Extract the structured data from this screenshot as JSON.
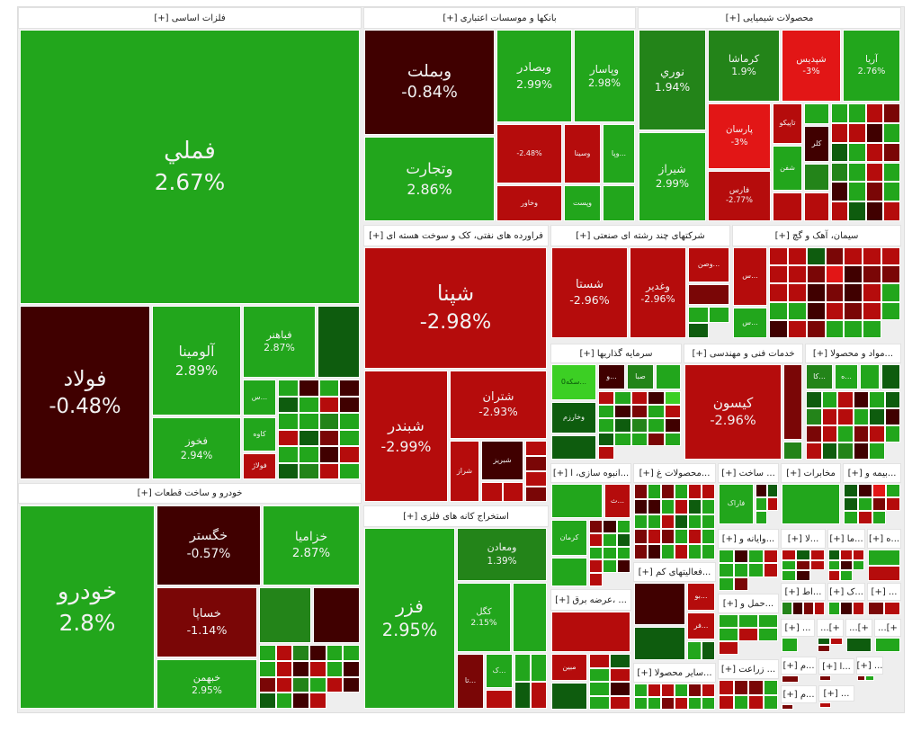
{
  "palette": {
    "g": "#22a61c",
    "G": "#0e5c0e",
    "m": "#238419",
    "l": "#3ccf24",
    "r": "#b50c0c",
    "R": "#e21616",
    "d": "#400000",
    "k": "#7a0606"
  },
  "sectors": [
    {
      "title": "فلزات اساسی [+]",
      "tiles": [
        {
          "name": "فملي",
          "pct": "2.67%",
          "color": "g"
        },
        {
          "name": "فولاد",
          "pct": "-0.48%",
          "color": "d"
        },
        {
          "name": "آلومينا",
          "pct": "2.89%",
          "color": "g"
        },
        {
          "name": "فخوز",
          "pct": "2.94%",
          "color": "g"
        },
        {
          "name": "فباهنر",
          "pct": "2.87%",
          "color": "g"
        },
        {
          "name": "",
          "pct": "",
          "color": "G"
        },
        {
          "name": "...س",
          "pct": "",
          "color": "g"
        },
        {
          "name": "کاوه",
          "pct": "",
          "color": "g"
        },
        {
          "name": "فولاژ",
          "pct": "",
          "color": "r"
        }
      ],
      "filler": [
        "gdgdGgrdggmgrGkgggdrGmrg"
      ]
    },
    {
      "title": "خودرو و ساخت قطعات [+]",
      "tiles": [
        {
          "name": "خودرو",
          "pct": "2.8%",
          "color": "g"
        },
        {
          "name": "خگستر",
          "pct": "-0.57%",
          "color": "d"
        },
        {
          "name": "خزامیا",
          "pct": "2.87%",
          "color": "g"
        },
        {
          "name": "خساپا",
          "pct": "-1.14%",
          "color": "k"
        },
        {
          "name": "خبهمن",
          "pct": "2.95%",
          "color": "g"
        },
        {
          "name": "",
          "pct": "",
          "color": "m"
        },
        {
          "name": "",
          "pct": "",
          "color": "d"
        }
      ],
      "filler": [
        "grmdgggrdrgdkrmgrdGgdr"
      ]
    },
    {
      "title": "بانکها و موسسات اعتباری [+]",
      "tiles": [
        {
          "name": "وبملت",
          "pct": "-0.84%",
          "color": "d"
        },
        {
          "name": "وتجارت",
          "pct": "2.86%",
          "color": "g"
        },
        {
          "name": "وبصادر",
          "pct": "2.99%",
          "color": "g"
        },
        {
          "name": "وپاسار",
          "pct": "2.98%",
          "color": "g"
        },
        {
          "name": "",
          "pct": "-2.48%",
          "color": "r"
        },
        {
          "name": "وسينا",
          "pct": "",
          "color": "r"
        },
        {
          "name": "...وپا",
          "pct": "",
          "color": "g"
        },
        {
          "name": "وخاور",
          "pct": "",
          "color": "r"
        },
        {
          "name": "وپست",
          "pct": "",
          "color": "g"
        },
        {
          "name": "",
          "pct": "",
          "color": "g"
        }
      ],
      "filler": []
    },
    {
      "title": "محصولات شیمیایی [+]",
      "tiles": [
        {
          "name": "نوري",
          "pct": "1.94%",
          "color": "m"
        },
        {
          "name": "شيراز",
          "pct": "2.99%",
          "color": "g"
        },
        {
          "name": "کرماشا",
          "pct": "1.9%",
          "color": "m"
        },
        {
          "name": "شپديس",
          "pct": "-3%",
          "color": "R"
        },
        {
          "name": "آريا",
          "pct": "2.76%",
          "color": "g"
        },
        {
          "name": "پارسان",
          "pct": "-3%",
          "color": "R"
        },
        {
          "name": "فارس",
          "pct": "-2.77%",
          "color": "r"
        },
        {
          "name": "تاپيکو",
          "pct": "",
          "color": "r"
        },
        {
          "name": "شفن",
          "pct": "",
          "color": "g"
        },
        {
          "name": "",
          "pct": "",
          "color": "r"
        },
        {
          "name": "کلر",
          "pct": "",
          "color": "d"
        },
        {
          "name": "",
          "pct": "",
          "color": "g"
        },
        {
          "name": "",
          "pct": "",
          "color": "m"
        },
        {
          "name": "",
          "pct": "",
          "color": "r"
        }
      ],
      "filler": [
        "ggrkrrdgGgrkmgrgdgkgrGdr"
      ]
    },
    {
      "title": "فراورده های نفتی، کک و سوخت هسته ای [+]",
      "tiles": [
        {
          "name": "شپنا",
          "pct": "-2.98%",
          "color": "r"
        },
        {
          "name": "شبندر",
          "pct": "-2.99%",
          "color": "r"
        },
        {
          "name": "شتران",
          "pct": "-2.93%",
          "color": "r"
        },
        {
          "name": "شراز",
          "pct": "",
          "color": "r"
        },
        {
          "name": "شبريز",
          "pct": "",
          "color": "d"
        }
      ],
      "filler": [
        "rkrk",
        "rr"
      ]
    },
    {
      "title": "استخراج کانه های فلزی [+]",
      "tiles": [
        {
          "name": "فزر",
          "pct": "2.95%",
          "color": "g"
        },
        {
          "name": "ومعادن",
          "pct": "1.39%",
          "color": "m"
        },
        {
          "name": "کگل",
          "pct": "2.15%",
          "color": "g"
        },
        {
          "name": "",
          "pct": "",
          "color": "g"
        },
        {
          "name": "...تا",
          "pct": "",
          "color": "k"
        },
        {
          "name": "...ک",
          "pct": "",
          "color": "g"
        }
      ],
      "filler": [
        "ggGr",
        "r"
      ]
    },
    {
      "title": "شرکتهای چند رشته ای صنعتی [+]",
      "tiles": [
        {
          "name": "شستا",
          "pct": "-2.96%",
          "color": "r"
        },
        {
          "name": "وغدير",
          "pct": "-2.96%",
          "color": "r"
        },
        {
          "name": "...وصن",
          "pct": "",
          "color": "r"
        },
        {
          "name": "",
          "pct": "",
          "color": "k"
        }
      ],
      "filler": [
        "ggG"
      ]
    },
    {
      "title": "سیمان، آهک و گچ [+]",
      "tiles": [
        {
          "name": "...س",
          "pct": "",
          "color": "r"
        },
        {
          "name": "...س",
          "pct": "",
          "color": "g"
        }
      ],
      "filler": [
        "rrGkrrrrrkRdkkrrdkdrgggdrkrgdrkggg"
      ]
    },
    {
      "title": "سرمایه گذاریها [+]",
      "tiles": [
        {
          "name": "...سکه0",
          "pct": "",
          "color": "l"
        },
        {
          "name": "...و",
          "pct": "",
          "color": "d"
        },
        {
          "name": "صبا",
          "pct": "",
          "color": "m"
        },
        {
          "name": "",
          "pct": "",
          "color": "g"
        },
        {
          "name": "وخارزم",
          "pct": "",
          "color": "G"
        },
        {
          "name": "",
          "pct": "",
          "color": "G"
        }
      ],
      "filler": [
        "rgrdlgdkgrgGmgdGggkgr"
      ]
    },
    {
      "title": "خدمات فنی و مهندسی [+]",
      "tiles": [
        {
          "name": "کيسون",
          "pct": "-2.96%",
          "color": "r"
        },
        {
          "name": "",
          "pct": "",
          "color": "k"
        },
        {
          "name": "",
          "pct": "",
          "color": "m"
        }
      ],
      "filler": []
    },
    {
      "title": "...مواد و محصولا [+]",
      "tiles": [
        {
          "name": "...کا",
          "pct": "",
          "color": "m"
        },
        {
          "name": "...ه",
          "pct": "",
          "color": "g"
        },
        {
          "name": "",
          "pct": "",
          "color": "g"
        },
        {
          "name": "",
          "pct": "",
          "color": "G"
        }
      ],
      "filler": [
        "GgrdgGmrrgGdkrgkrgrGmdg"
      ]
    },
    {
      "title": "...انبوه سازی، ا [+]",
      "tiles": [
        {
          "name": "",
          "pct": "",
          "color": "g"
        },
        {
          "name": "...ث",
          "pct": "",
          "color": "r"
        },
        {
          "name": "کرمان",
          "pct": "",
          "color": "g"
        },
        {
          "name": "",
          "pct": "",
          "color": "g"
        }
      ],
      "filler": [
        "kdgrgGgggrgdr"
      ]
    },
    {
      "title": "...محصولات غ [+]",
      "tiles": [],
      "filler": [
        "kgkgrrddgrGgggrGggkrkgrgkdgrgg"
      ]
    },
    {
      "title": "... ساخت [+]",
      "tiles": [
        {
          "name": "فاراک",
          "pct": "",
          "color": "g"
        }
      ],
      "filler": [
        "dGgrg"
      ]
    },
    {
      "title": "مخابرات [+]",
      "tiles": [
        {
          "name": "",
          "pct": "",
          "color": "g"
        }
      ],
      "filler": []
    },
    {
      "title": "...بیمه و [+]",
      "tiles": [],
      "filler": [
        "GdRgGgkrgrg"
      ]
    },
    {
      "title": "... ،عرضه برق [+]",
      "tiles": [
        {
          "name": "",
          "pct": "",
          "color": "r"
        },
        {
          "name": "مبين",
          "pct": "",
          "color": "r"
        },
        {
          "name": "",
          "pct": "",
          "color": "G"
        }
      ],
      "filler": [
        "rGgrgdgr"
      ]
    },
    {
      "title": "...فعالیتهای کم [+]",
      "tiles": [
        {
          "name": "",
          "pct": "",
          "color": "d"
        },
        {
          "name": "...بو",
          "pct": "",
          "color": "r"
        },
        {
          "name": "...فر",
          "pct": "",
          "color": "r"
        },
        {
          "name": "",
          "pct": "",
          "color": "G"
        }
      ],
      "filler": [
        "gG"
      ]
    },
    {
      "title": "...سایر محصولا [+]",
      "tiles": [],
      "filler": [
        "grrgkrggkrgg"
      ]
    },
    {
      "title": "...وایانه و [+]",
      "tiles": [],
      "filler": [
        "gdgrgggrgk"
      ]
    },
    {
      "title": "...حمل و [+]",
      "tiles": [],
      "filler": [
        "ggggrgr"
      ]
    },
    {
      "title": "... زراعت [+]",
      "tiles": [],
      "filler": [
        "rkkgrgrg"
      ]
    },
    {
      "title": "...لا [+]",
      "tiles": [],
      "filler": [
        "rGrgkrgd"
      ]
    },
    {
      "title": "...ما [+]",
      "tiles": [],
      "filler": [
        "Grrgdgrg"
      ]
    },
    {
      "title": "...ه [+]",
      "tiles": [],
      "filler": [
        "gr"
      ]
    },
    {
      "title": "...اط [+]",
      "tiles": [],
      "filler": [
        "mdkr"
      ]
    },
    {
      "title": "...ک [+]",
      "tiles": [],
      "filler": [
        "gdr"
      ]
    },
    {
      "title": "... [+]",
      "tiles": [],
      "filler": [
        "kr"
      ]
    },
    {
      "title": "... [+]",
      "tiles": [],
      "filler": [
        "g"
      ]
    },
    {
      "title": "+]...",
      "tiles": [],
      "filler": [
        "Grk"
      ]
    },
    {
      "title": "+]...",
      "tiles": [],
      "filler": [
        "G"
      ]
    },
    {
      "title": "+]...",
      "tiles": [],
      "filler": [
        "g"
      ]
    },
    {
      "title": "...م [+]",
      "tiles": [],
      "filler": [
        "k"
      ]
    },
    {
      "title": "...ا [+]",
      "tiles": [],
      "filler": [
        "k"
      ]
    },
    {
      "title": "... [+]",
      "tiles": [],
      "filler": [
        "kg"
      ]
    },
    {
      "title": "...م [+]",
      "tiles": [],
      "filler": [
        "k"
      ]
    },
    {
      "title": "... [+]",
      "tiles": [],
      "filler": [
        "r"
      ]
    }
  ]
}
